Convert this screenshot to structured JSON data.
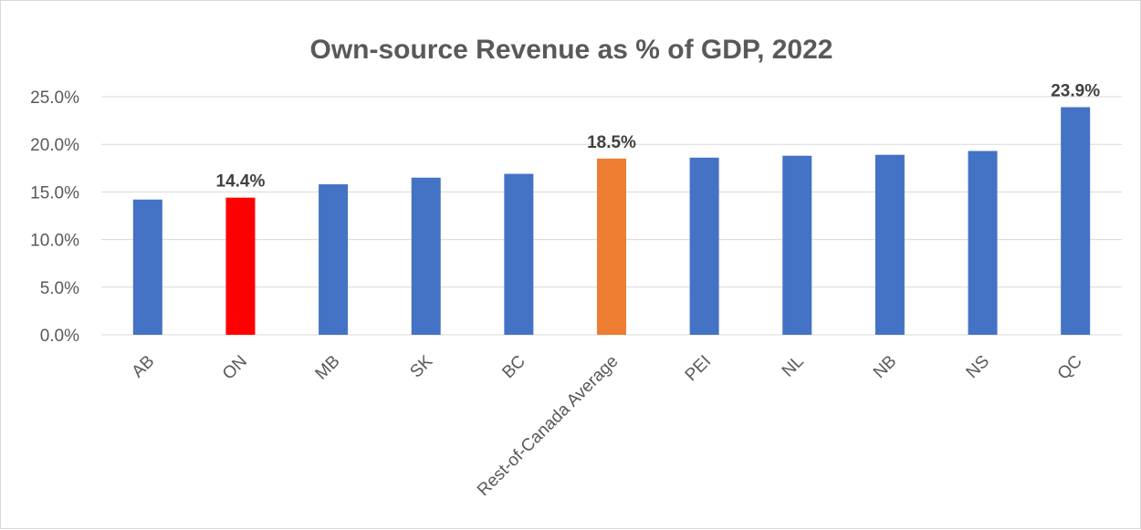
{
  "chart_data": {
    "type": "bar",
    "title": "Own-source Revenue as % of GDP, 2022",
    "xlabel": "",
    "ylabel": "",
    "ylim": [
      0,
      25
    ],
    "y_ticks": [
      "0.0%",
      "5.0%",
      "10.0%",
      "15.0%",
      "20.0%",
      "25.0%"
    ],
    "y_tick_values": [
      0,
      5,
      10,
      15,
      20,
      25
    ],
    "categories": [
      "AB",
      "ON",
      "MB",
      "SK",
      "BC",
      "Rest-of-Canada Average",
      "PEI",
      "NL",
      "NB",
      "NS",
      "QC"
    ],
    "values": [
      14.2,
      14.4,
      15.8,
      16.5,
      16.9,
      18.5,
      18.6,
      18.8,
      18.9,
      19.3,
      23.9
    ],
    "bar_colors": [
      "#4472c4",
      "#ff0000",
      "#4472c4",
      "#4472c4",
      "#4472c4",
      "#ed7d31",
      "#4472c4",
      "#4472c4",
      "#4472c4",
      "#4472c4",
      "#4472c4"
    ],
    "data_labels": [
      "",
      "14.4%",
      "",
      "",
      "",
      "18.5%",
      "",
      "",
      "",
      "",
      "23.9%"
    ],
    "grid": true,
    "legend": "none"
  }
}
